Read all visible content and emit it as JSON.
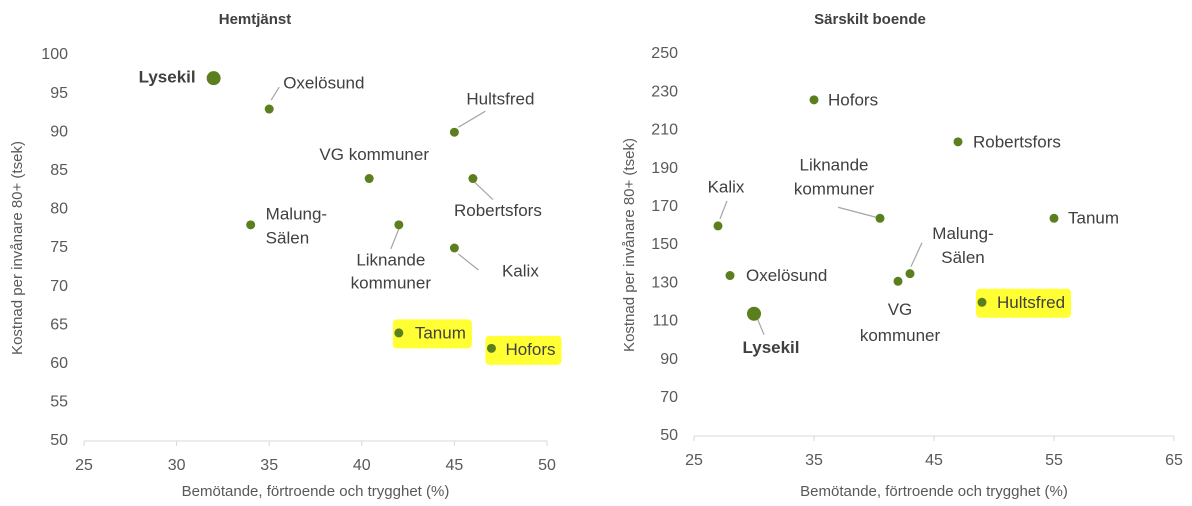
{
  "chart_data": [
    {
      "type": "scatter",
      "title": "Hemtjänst",
      "x_label": "Bemötande, förtroende och trygghet (%)",
      "y_label": "Kostnad per invånare 80+ (tsek)",
      "xlim": [
        25,
        50
      ],
      "xticks": [
        25,
        30,
        35,
        40,
        45,
        50
      ],
      "ylim": [
        50,
        100
      ],
      "yticks": [
        50,
        55,
        60,
        65,
        70,
        75,
        80,
        85,
        90,
        95,
        100
      ],
      "color": "#5b7f1f",
      "highlight_color": "#ffff33",
      "points": [
        {
          "label": [
            "Lysekil"
          ],
          "x": 32,
          "y": 97,
          "bold": true
        },
        {
          "label": [
            "Oxelösund"
          ],
          "x": 35,
          "y": 93
        },
        {
          "label": [
            "Hultsfred"
          ],
          "x": 45,
          "y": 90
        },
        {
          "label": [
            "VG kommuner"
          ],
          "x": 40.4,
          "y": 84
        },
        {
          "label": [
            "Robertsfors"
          ],
          "x": 46,
          "y": 84
        },
        {
          "label": [
            "Malung-",
            "Sälen"
          ],
          "x": 34,
          "y": 78
        },
        {
          "label": [
            "Liknande",
            "kommuner"
          ],
          "x": 42,
          "y": 78
        },
        {
          "label": [
            "Kalix"
          ],
          "x": 45,
          "y": 75
        },
        {
          "label": [
            "Tanum"
          ],
          "x": 42,
          "y": 64,
          "highlighted": true
        },
        {
          "label": [
            "Hofors"
          ],
          "x": 47,
          "y": 62,
          "highlighted": true
        }
      ]
    },
    {
      "type": "scatter",
      "title": "Särskilt boende",
      "x_label": "Bemötande, förtroende och trygghet (%)",
      "y_label": "Kostnad per invånare 80+ (tsek)",
      "xlim": [
        25,
        65
      ],
      "xticks": [
        25,
        35,
        45,
        55,
        65
      ],
      "ylim": [
        50,
        250
      ],
      "yticks": [
        50,
        70,
        90,
        110,
        130,
        150,
        170,
        190,
        210,
        230,
        250
      ],
      "color": "#5b7f1f",
      "highlight_color": "#ffff33",
      "points": [
        {
          "label": [
            "Hofors"
          ],
          "x": 35,
          "y": 226
        },
        {
          "label": [
            "Robertsfors"
          ],
          "x": 47,
          "y": 204
        },
        {
          "label": [
            "Kalix"
          ],
          "x": 27,
          "y": 160
        },
        {
          "label": [
            "Liknande",
            "kommuner"
          ],
          "x": 40.5,
          "y": 164
        },
        {
          "label": [
            "Tanum"
          ],
          "x": 55,
          "y": 164
        },
        {
          "label": [
            "Malung-",
            "Sälen"
          ],
          "x": 43,
          "y": 135
        },
        {
          "label": [
            "Oxelösund"
          ],
          "x": 28,
          "y": 134
        },
        {
          "label": [
            "VG",
            "kommuner"
          ],
          "x": 42,
          "y": 131
        },
        {
          "label": [
            "Hultsfred"
          ],
          "x": 49,
          "y": 120,
          "highlighted": true
        },
        {
          "label": [
            "Lysekil"
          ],
          "x": 30,
          "y": 114,
          "bold": true
        }
      ]
    }
  ]
}
